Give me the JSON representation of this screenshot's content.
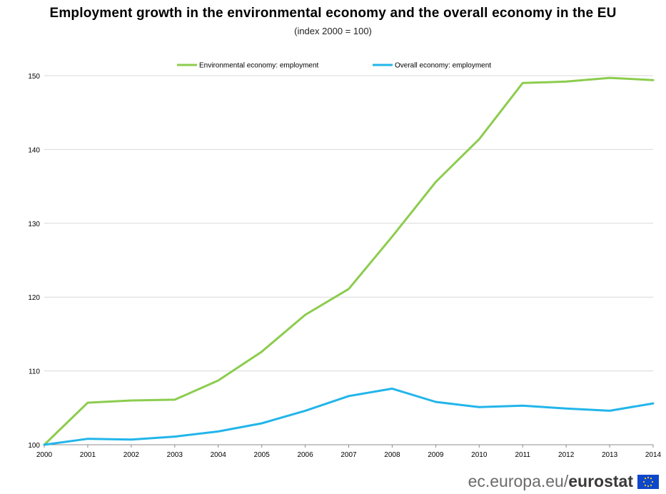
{
  "chart_data": {
    "type": "line",
    "title": "Employment growth in the environmental economy and the overall economy in the EU",
    "subtitle": "(index 2000 = 100)",
    "x": [
      "2000",
      "2001",
      "2002",
      "2003",
      "2004",
      "2005",
      "2006",
      "2007",
      "2008",
      "2009",
      "2010",
      "2011",
      "2012",
      "2013",
      "2014"
    ],
    "ylim": [
      100,
      150
    ],
    "yticks": [
      "100",
      "110",
      "120",
      "130",
      "140",
      "150"
    ],
    "grid": true,
    "legend_position": "top",
    "series": [
      {
        "name": "Environmental economy: employment",
        "color": "#8ccc4e",
        "values": [
          100,
          105.7,
          106,
          106.1,
          108.7,
          112.6,
          117.6,
          121.1,
          128.2,
          135.6,
          141.4,
          149.0,
          149.2,
          149.7,
          149.4
        ]
      },
      {
        "name": "Overall economy: employment",
        "color": "#22b5ea",
        "values": [
          100,
          100.8,
          100.7,
          101.1,
          101.8,
          102.9,
          104.6,
          106.6,
          107.6,
          105.8,
          105.1,
          105.3,
          104.9,
          104.6,
          105.6
        ]
      }
    ]
  },
  "footer": {
    "site": "ec.europa.eu/",
    "brand": "eurostat",
    "flag_icon": "eu-flag-icon"
  }
}
